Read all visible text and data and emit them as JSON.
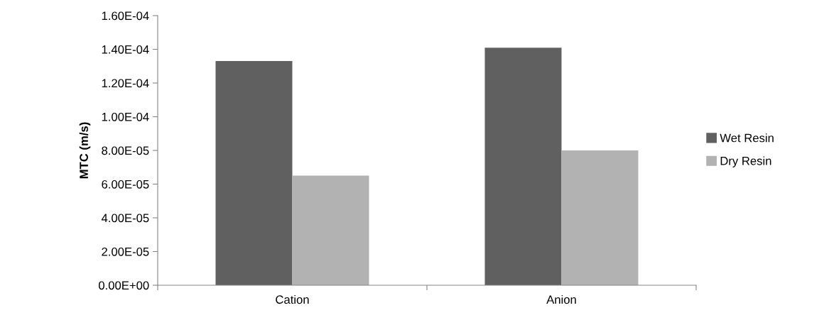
{
  "chart_data": {
    "type": "bar",
    "ylabel": "MTC (m/s)",
    "categories": [
      "Cation",
      "Anion"
    ],
    "series": [
      {
        "name": "Wet Resin",
        "color": "#606060",
        "values": [
          0.000133,
          0.000141
        ]
      },
      {
        "name": "Dry Resin",
        "color": "#b2b2b2",
        "values": [
          6.5e-05,
          8e-05
        ]
      }
    ],
    "ylim": [
      0,
      0.00016
    ],
    "yticks": [
      {
        "value": 0,
        "label": "0.00E+00"
      },
      {
        "value": 2e-05,
        "label": "2.00E-05"
      },
      {
        "value": 4e-05,
        "label": "4.00E-05"
      },
      {
        "value": 6e-05,
        "label": "6.00E-05"
      },
      {
        "value": 8e-05,
        "label": "8.00E-05"
      },
      {
        "value": 0.0001,
        "label": "1.00E-04"
      },
      {
        "value": 0.00012,
        "label": "1.20E-04"
      },
      {
        "value": 0.00014,
        "label": "1.40E-04"
      },
      {
        "value": 0.00016,
        "label": "1.60E-04"
      }
    ],
    "grid": false,
    "legend": "right"
  }
}
